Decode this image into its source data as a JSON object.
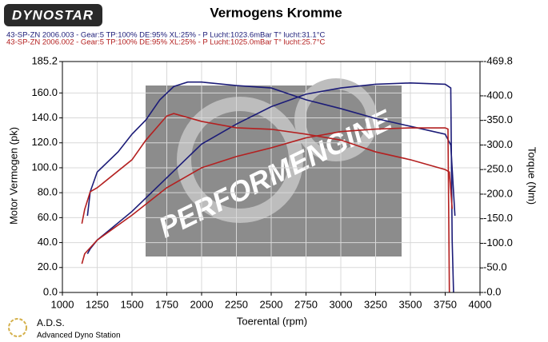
{
  "chart_data": {
    "type": "line",
    "title": "Vermogens Kromme",
    "logo": "DYNOSTAR",
    "footer_logo": "A.D.S.",
    "footer_text": "Advanced Dyno Station",
    "watermark": "PERFORMENGINE",
    "runs": [
      {
        "label": "43-SP-ZN 2006.003 - Gear:5 TP:100% DE:95% XL:25%   - P Lucht:1023.6mBar T° lucht:31.1°C",
        "color": "#1c1c78"
      },
      {
        "label": "43-SP-ZN 2006.002 - Gear:5 TP:100% DE:95% XL:25%   - P Lucht:1025.0mBar T° lucht:25.7°C",
        "color": "#b42020"
      }
    ],
    "x_label": "Toerental (rpm)",
    "y_label": "Motor Vermogen (pk)",
    "y2_label": "Torque (Nm)",
    "xlim": [
      1000,
      4000
    ],
    "xticks": [
      1000,
      1250,
      1500,
      1750,
      2000,
      2250,
      2500,
      2750,
      3000,
      3250,
      3500,
      3750,
      4000
    ],
    "ylim": [
      0,
      185.2
    ],
    "yticks": [
      {
        "value": 0,
        "label": "0.0"
      },
      {
        "value": 20,
        "label": "20.0"
      },
      {
        "value": 40,
        "label": "40.0"
      },
      {
        "value": 60,
        "label": "60.0"
      },
      {
        "value": 80,
        "label": "80.0"
      },
      {
        "value": 100,
        "label": "100.0"
      },
      {
        "value": 120,
        "label": "120.0"
      },
      {
        "value": 140,
        "label": "140.0"
      },
      {
        "value": 160,
        "label": "160.0"
      },
      185.2
    ],
    "y2lim": [
      0,
      469.8
    ],
    "y2ticks": [
      {
        "value": 0,
        "label": "-0.0"
      },
      {
        "value": 50,
        "label": "-50.0"
      },
      {
        "value": 100,
        "label": "-100.0"
      },
      {
        "value": 150,
        "label": "-150.0"
      },
      {
        "value": 200,
        "label": "-200.0"
      },
      {
        "value": 250,
        "label": "-250.0"
      },
      {
        "value": 300,
        "label": "-300.0"
      },
      {
        "value": 350,
        "label": "-350.0"
      },
      {
        "value": 400,
        "label": "-400.0"
      },
      {
        "value": 469.8,
        "label": "-469.8"
      }
    ],
    "grid": true,
    "series": [
      {
        "color": "#1c1c78",
        "axis": "y",
        "x": [
          1180,
          1200,
          1250,
          1500,
          1750,
          2000,
          2250,
          2500,
          2750,
          3000,
          3250,
          3500,
          3750,
          3790,
          3800,
          3810
        ],
        "values": [
          31,
          35,
          42,
          65,
          92,
          119,
          135,
          149,
          159,
          164,
          167,
          168,
          167,
          164,
          42,
          0
        ]
      },
      {
        "color": "#1c1c78",
        "axis": "y2",
        "x": [
          1180,
          1200,
          1250,
          1400,
          1500,
          1600,
          1700,
          1800,
          1900,
          2000,
          2250,
          2500,
          2750,
          3000,
          3250,
          3500,
          3750,
          3790,
          3820
        ],
        "values": [
          156,
          205,
          245,
          286,
          322,
          351,
          392,
          419,
          428,
          428,
          421,
          416,
          392,
          374,
          354,
          338,
          322,
          300,
          156
        ]
      },
      {
        "color": "#b42020",
        "axis": "y",
        "x": [
          1140,
          1160,
          1250,
          1500,
          1750,
          2000,
          2250,
          2500,
          2750,
          3000,
          3250,
          3500,
          3750,
          3770,
          3780
        ],
        "values": [
          23,
          31,
          42,
          62,
          84,
          100,
          109,
          116,
          124,
          129,
          131,
          132,
          132,
          131,
          0
        ]
      },
      {
        "color": "#b42020",
        "axis": "y2",
        "x": [
          1140,
          1160,
          1200,
          1250,
          1500,
          1600,
          1750,
          1800,
          2000,
          2250,
          2500,
          2750,
          3000,
          3250,
          3500,
          3750,
          3780,
          3800
        ],
        "values": [
          140,
          169,
          205,
          213,
          270,
          310,
          359,
          364,
          348,
          335,
          332,
          322,
          310,
          286,
          270,
          250,
          245,
          170
        ]
      }
    ]
  }
}
